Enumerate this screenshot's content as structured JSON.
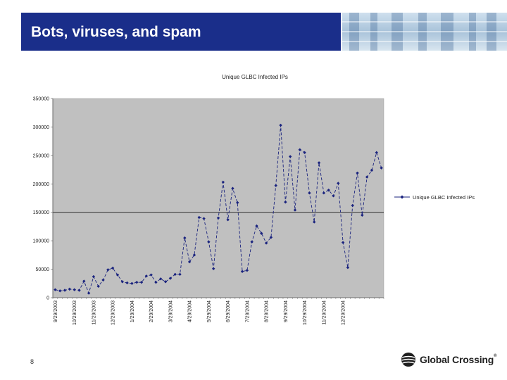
{
  "slide": {
    "title": "Bots, viruses, and spam",
    "page_number": "8",
    "logo_text": "Global Crossing",
    "logo_reg": "®"
  },
  "colors": {
    "header_bar": "#1a2e8a",
    "plot_bg": "#c0c0c0",
    "series": "#1a237e"
  },
  "chart_data": {
    "type": "line",
    "title": "Unique GLBC Infected IPs",
    "xlabel": "",
    "ylabel": "",
    "ylim": [
      0,
      350000
    ],
    "yticks": [
      0,
      50000,
      100000,
      150000,
      200000,
      250000,
      300000,
      350000
    ],
    "ytick_labels": [
      "0",
      "50000",
      "100000",
      "150000",
      "200000",
      "250000",
      "300000",
      "350000"
    ],
    "xtick_labels": [
      "9/29/2003",
      "10/29/2003",
      "11/29/2003",
      "12/29/2003",
      "1/29/2004",
      "2/29/2004",
      "3/29/2004",
      "4/29/2004",
      "5/29/2004",
      "6/29/2004",
      "7/29/2004",
      "8/29/2004",
      "9/29/2004",
      "10/29/2004",
      "11/29/2004",
      "12/29/2004"
    ],
    "legend": "right",
    "grid": "major y at 150000",
    "series": [
      {
        "name": "Unique GLBC Infected IPs",
        "line_style": "dashed",
        "marker": "diamond",
        "values": [
          14000,
          12000,
          13000,
          15000,
          14000,
          13000,
          29000,
          8000,
          37000,
          20000,
          31000,
          49000,
          52000,
          40000,
          28000,
          26000,
          25000,
          27000,
          27000,
          38000,
          40000,
          27000,
          33000,
          28000,
          34000,
          41000,
          41000,
          105000,
          63000,
          75000,
          141000,
          139000,
          98000,
          51000,
          140000,
          203000,
          137000,
          192000,
          167000,
          46000,
          48000,
          98000,
          126000,
          113000,
          96000,
          106000,
          197000,
          303000,
          168000,
          248000,
          154000,
          260000,
          255000,
          184000,
          133000,
          237000,
          184000,
          189000,
          179000,
          201000,
          97000,
          53000,
          162000,
          219000,
          145000,
          212000,
          224000,
          255000,
          228000
        ]
      }
    ]
  }
}
